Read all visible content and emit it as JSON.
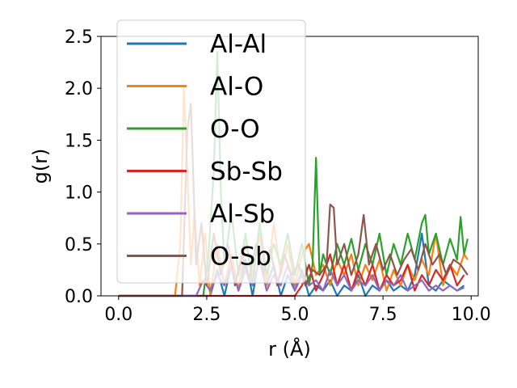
{
  "chart_data": {
    "type": "line",
    "title": "",
    "xlabel": "r (Å)",
    "ylabel": "g(r)",
    "xlim": [
      -0.5,
      10.2
    ],
    "ylim": [
      0,
      2.5
    ],
    "x_ticks": [
      "0.0",
      "2.5",
      "5.0",
      "7.5",
      "10.0"
    ],
    "x_tick_values": [
      0,
      2.5,
      5,
      7.5,
      10
    ],
    "y_ticks": [
      "0.0",
      "0.5",
      "1.0",
      "1.5",
      "2.0",
      "2.5"
    ],
    "y_tick_values": [
      0,
      0.5,
      1,
      1.5,
      2,
      2.5
    ],
    "grid": false,
    "legend_position": "top-left",
    "series": [
      {
        "name": "Al-Al",
        "color": "#1f77b4",
        "x": [
          0,
          2.6,
          2.8,
          3.0,
          3.2,
          3.4,
          3.6,
          3.8,
          4.0,
          4.2,
          4.4,
          4.6,
          4.8,
          5.0,
          5.2,
          5.4,
          5.6,
          5.8,
          6.0,
          6.2,
          6.4,
          6.6,
          6.8,
          7.0,
          7.2,
          7.4,
          7.6,
          7.8,
          8.0,
          8.2,
          8.4,
          8.6,
          8.8,
          9.0,
          9.2,
          9.4,
          9.6,
          9.8
        ],
        "y": [
          0,
          0,
          0.25,
          0,
          0.3,
          0.05,
          0.35,
          0,
          0.4,
          0.1,
          0.3,
          0,
          0.2,
          0.05,
          0.25,
          0,
          0.1,
          0.05,
          0.15,
          0,
          0.1,
          0.05,
          0.2,
          0,
          0.1,
          0.05,
          0.15,
          0.05,
          0.1,
          0.05,
          0.2,
          0.6,
          0.1,
          0.05,
          0.15,
          0.1,
          0.05,
          0.1
        ]
      },
      {
        "name": "Al-O",
        "color": "#ff7f0e",
        "x": [
          0,
          1.6,
          1.75,
          1.85,
          1.95,
          2.05,
          2.15,
          2.3,
          2.45,
          2.6,
          2.8,
          3.0,
          3.2,
          3.4,
          3.6,
          3.8,
          4.0,
          4.2,
          4.4,
          4.6,
          4.8,
          5.0,
          5.2,
          5.4,
          5.6,
          5.8,
          6.0,
          6.2,
          6.4,
          6.6,
          6.8,
          7.0,
          7.2,
          7.4,
          7.6,
          7.8,
          8.0,
          8.2,
          8.4,
          8.6,
          8.8,
          9.0,
          9.2,
          9.4,
          9.6,
          9.8,
          9.9
        ],
        "y": [
          0,
          0,
          0.5,
          2.0,
          1.2,
          0.3,
          0.8,
          0.1,
          0.6,
          0,
          0.5,
          0.1,
          0.4,
          0.05,
          0.5,
          0.2,
          0.6,
          0.1,
          0.7,
          0.2,
          0.5,
          0.1,
          0.4,
          0.5,
          0.2,
          0.3,
          0.1,
          0.35,
          0.2,
          0.4,
          0.1,
          0.3,
          0.15,
          0.35,
          0.05,
          0.25,
          0.1,
          0.3,
          0.15,
          0.35,
          0.2,
          0.6,
          0.1,
          0.3,
          0.2,
          0.4,
          0.35
        ]
      },
      {
        "name": "O-O",
        "color": "#2ca02c",
        "x": [
          0,
          2.4,
          2.55,
          2.7,
          2.8,
          2.9,
          3.0,
          3.2,
          3.4,
          3.6,
          3.8,
          4.0,
          4.2,
          4.4,
          4.6,
          4.8,
          5.0,
          5.2,
          5.4,
          5.5,
          5.6,
          5.7,
          5.8,
          6.0,
          6.2,
          6.4,
          6.6,
          6.8,
          7.0,
          7.2,
          7.4,
          7.6,
          7.8,
          8.0,
          8.2,
          8.4,
          8.6,
          8.7,
          8.8,
          9.0,
          9.2,
          9.4,
          9.6,
          9.7,
          9.8,
          9.9
        ],
        "y": [
          0,
          0,
          0.4,
          1.2,
          2.35,
          1.0,
          0.3,
          0.8,
          0.2,
          0.6,
          0.1,
          0.7,
          0.2,
          0.5,
          0.3,
          0.6,
          0.2,
          0.5,
          0.1,
          0.3,
          1.33,
          0.2,
          0.4,
          0.2,
          0.5,
          0.3,
          0.55,
          0.25,
          0.5,
          0.3,
          0.6,
          0.2,
          0.5,
          0.3,
          0.6,
          0.35,
          0.7,
          0.78,
          0.4,
          0.6,
          0.3,
          0.55,
          0.35,
          0.76,
          0.4,
          0.55
        ]
      },
      {
        "name": "Sb-Sb",
        "color": "#d62728",
        "x": [
          0,
          5.0,
          5.2,
          5.4,
          5.6,
          5.8,
          6.0,
          6.2,
          6.4,
          6.6,
          6.8,
          7.0,
          7.2,
          7.4,
          7.6,
          7.8,
          8.0,
          8.2,
          8.4,
          8.6,
          8.8,
          9.0,
          9.2,
          9.4,
          9.6,
          9.8
        ],
        "y": [
          0,
          0,
          0.1,
          0.3,
          0.05,
          0.2,
          0.4,
          0.1,
          0.3,
          0.05,
          0.25,
          0.1,
          0.3,
          0.05,
          0.2,
          0.1,
          0.15,
          0.3,
          0.05,
          0.2,
          0.1,
          0.25,
          0.15,
          0.3,
          0.1,
          0.2
        ]
      },
      {
        "name": "Al-Sb",
        "color": "#9467bd",
        "x": [
          0,
          2.2,
          2.4,
          2.6,
          2.8,
          3.0,
          3.2,
          3.4,
          3.6,
          3.8,
          4.0,
          4.2,
          4.4,
          4.6,
          4.8,
          5.0,
          5.2,
          5.4,
          5.6,
          5.8,
          6.0,
          6.2,
          6.4,
          6.6,
          6.8,
          7.0,
          7.2,
          7.4,
          7.6,
          7.8,
          8.0,
          8.2,
          8.4,
          8.6,
          8.8,
          9.0,
          9.2,
          9.4,
          9.6,
          9.8
        ],
        "y": [
          0,
          0,
          0.15,
          0.05,
          0.2,
          0.1,
          0.3,
          0.05,
          0.25,
          0.1,
          0.35,
          0.05,
          0.2,
          0.1,
          0.3,
          0.05,
          0.2,
          0.1,
          0.15,
          0.05,
          0.25,
          0.1,
          0.2,
          0.05,
          0.15,
          0.1,
          0.2,
          0.05,
          0.15,
          0.1,
          0.2,
          0.05,
          0.1,
          0.15,
          0.05,
          0.1,
          0.05,
          0.1,
          0.05,
          0.08
        ]
      },
      {
        "name": "O-Sb",
        "color": "#8c564b",
        "x": [
          0,
          1.8,
          1.95,
          2.05,
          2.2,
          2.35,
          2.5,
          2.7,
          2.9,
          3.1,
          3.3,
          3.5,
          3.7,
          3.9,
          4.1,
          4.3,
          4.5,
          4.7,
          4.9,
          5.1,
          5.3,
          5.5,
          5.7,
          5.9,
          6.0,
          6.1,
          6.2,
          6.4,
          6.6,
          6.8,
          6.95,
          7.1,
          7.3,
          7.5,
          7.7,
          7.9,
          8.1,
          8.3,
          8.5,
          8.7,
          8.9,
          9.1,
          9.3,
          9.5,
          9.7,
          9.9
        ],
        "y": [
          0,
          0,
          1.6,
          1.85,
          0.3,
          0.7,
          0.1,
          0.6,
          0.2,
          0.5,
          0.1,
          0.4,
          0.15,
          0.5,
          0.2,
          0.45,
          0.1,
          0.4,
          0.2,
          0.3,
          0.1,
          0.25,
          0.2,
          0.3,
          0.88,
          0.85,
          0.3,
          0.5,
          0.2,
          0.4,
          0.78,
          0.3,
          0.5,
          0.25,
          0.4,
          0.2,
          0.35,
          0.45,
          0.25,
          0.5,
          0.3,
          0.4,
          0.2,
          0.35,
          0.3,
          0.2
        ]
      }
    ]
  }
}
